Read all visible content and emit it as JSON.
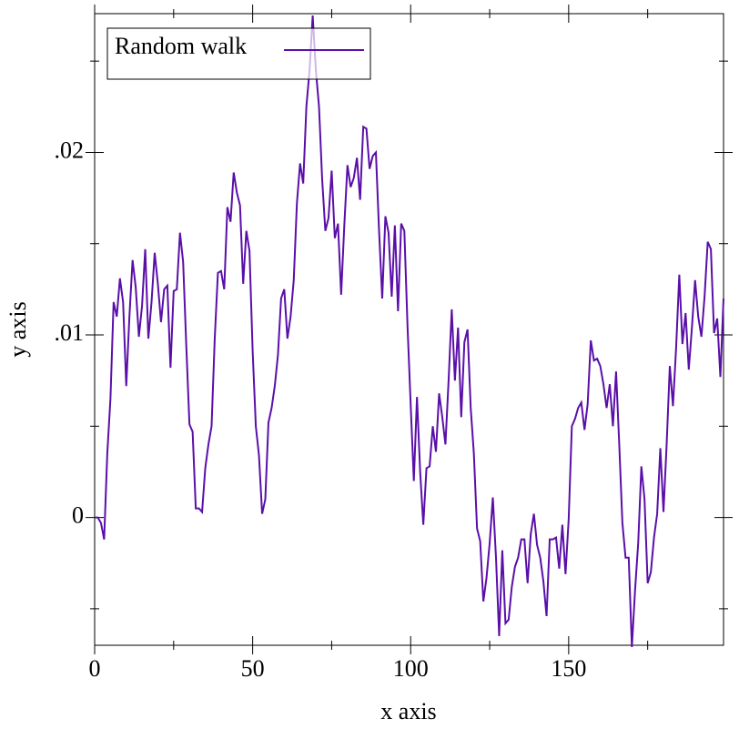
{
  "chart_data": {
    "type": "line",
    "xlabel": "x axis",
    "ylabel": "y axis",
    "xlim": [
      0,
      199
    ],
    "ylim": [
      -0.007,
      0.0276
    ],
    "xticks": [
      0,
      50,
      100,
      150
    ],
    "yticks": [
      0,
      {
        "value": 0.01,
        "label": ".01"
      },
      {
        "value": 0.02,
        "label": ".02"
      }
    ],
    "x_minor_ticks": [
      25,
      75,
      125,
      175
    ],
    "y_minor_ticks": [
      -0.005,
      0.005,
      0.015,
      0.025
    ],
    "legend": "top-left",
    "x": [
      0,
      1,
      2,
      3,
      4,
      5,
      6,
      7,
      8,
      9,
      10,
      11,
      12,
      13,
      14,
      15,
      16,
      17,
      18,
      19,
      20,
      21,
      22,
      23,
      24,
      25,
      26,
      27,
      28,
      29,
      30,
      31,
      32,
      33,
      34,
      35,
      36,
      37,
      38,
      39,
      40,
      41,
      42,
      43,
      44,
      45,
      46,
      47,
      48,
      49,
      50,
      51,
      52,
      53,
      54,
      55,
      56,
      57,
      58,
      59,
      60,
      61,
      62,
      63,
      64,
      65,
      66,
      67,
      68,
      69,
      70,
      71,
      72,
      73,
      74,
      75,
      76,
      77,
      78,
      79,
      80,
      81,
      82,
      83,
      84,
      85,
      86,
      87,
      88,
      89,
      90,
      91,
      92,
      93,
      94,
      95,
      96,
      97,
      98,
      99,
      100,
      101,
      102,
      103,
      104,
      105,
      106,
      107,
      108,
      109,
      110,
      111,
      112,
      113,
      114,
      115,
      116,
      117,
      118,
      119,
      120,
      121,
      122,
      123,
      124,
      125,
      126,
      127,
      128,
      129,
      130,
      131,
      132,
      133,
      134,
      135,
      136,
      137,
      138,
      139,
      140,
      141,
      142,
      143,
      144,
      145,
      146,
      147,
      148,
      149,
      150,
      151,
      152,
      153,
      154,
      155,
      156,
      157,
      158,
      159,
      160,
      161,
      162,
      163,
      164,
      165,
      166,
      167,
      168,
      169,
      170,
      171,
      172,
      173,
      174,
      175,
      176,
      177,
      178,
      179,
      180,
      181,
      182,
      183,
      184,
      185,
      186,
      187,
      188,
      189,
      190,
      191,
      192,
      193,
      194,
      195,
      196,
      197,
      198,
      199
    ],
    "series": [
      {
        "name": "Random walk",
        "color": "#5a0fa8",
        "values": [
          0,
          0,
          -0.0003,
          -0.0012,
          0.0035,
          0.0065,
          0.0118,
          0.011,
          0.0131,
          0.0118,
          0.0072,
          0.011,
          0.0141,
          0.0126,
          0.0099,
          0.0116,
          0.0147,
          0.0098,
          0.0118,
          0.0145,
          0.0128,
          0.0107,
          0.0125,
          0.0127,
          0.0082,
          0.0124,
          0.0125,
          0.0156,
          0.014,
          0.0094,
          0.0051,
          0.0047,
          0.0005,
          0.0005,
          0.0003,
          0.0027,
          0.004,
          0.005,
          0.0098,
          0.0134,
          0.0135,
          0.0125,
          0.017,
          0.0162,
          0.0189,
          0.0178,
          0.0171,
          0.0128,
          0.0157,
          0.0146,
          0.0091,
          0.005,
          0.0034,
          0.0002,
          0.001,
          0.0052,
          0.006,
          0.0072,
          0.0089,
          0.012,
          0.0125,
          0.0098,
          0.011,
          0.013,
          0.0172,
          0.0194,
          0.0183,
          0.0225,
          0.0245,
          0.0275,
          0.0245,
          0.0225,
          0.0185,
          0.0157,
          0.0164,
          0.019,
          0.0153,
          0.0161,
          0.0122,
          0.016,
          0.0193,
          0.0181,
          0.0186,
          0.0197,
          0.0174,
          0.0214,
          0.0213,
          0.0191,
          0.0198,
          0.02,
          0.0157,
          0.012,
          0.0165,
          0.0156,
          0.0121,
          0.016,
          0.0113,
          0.0161,
          0.0157,
          0.0105,
          0.0062,
          0.002,
          0.0066,
          0.0025,
          -0.0004,
          0.0027,
          0.0028,
          0.005,
          0.0036,
          0.0068,
          0.0055,
          0.004,
          0.0075,
          0.0114,
          0.0075,
          0.0104,
          0.0055,
          0.0096,
          0.0103,
          0.006,
          0.0035,
          -0.0006,
          -0.0013,
          -0.0046,
          -0.0033,
          -0.0014,
          0.0011,
          -0.0022,
          -0.0065,
          -0.0018,
          -0.0058,
          -0.0056,
          -0.0038,
          -0.0027,
          -0.0022,
          -0.0012,
          -0.0012,
          -0.0036,
          -0.0009,
          0.0002,
          -0.0015,
          -0.0022,
          -0.0035,
          -0.0054,
          -0.0012,
          -0.0012,
          -0.0011,
          -0.0028,
          -0.0004,
          -0.0031,
          -0.0001,
          0.005,
          0.0054,
          0.006,
          0.0063,
          0.0048,
          0.0062,
          0.0097,
          0.0086,
          0.0087,
          0.0083,
          0.0073,
          0.006,
          0.0073,
          0.005,
          0.008,
          0.004,
          -0.0003,
          -0.0022,
          -0.0022,
          -0.0071,
          -0.004,
          -0.0014,
          0.0028,
          0.001,
          -0.0036,
          -0.003,
          -0.0011,
          0.0002,
          0.0038,
          0.0003,
          0.004,
          0.0083,
          0.0061,
          0.0093,
          0.0133,
          0.0095,
          0.0112,
          0.0081,
          0.0104,
          0.013,
          0.011,
          0.0099,
          0.0121,
          0.0151,
          0.0147,
          0.0101,
          0.0109,
          0.0077,
          0.012
        ]
      }
    ]
  }
}
